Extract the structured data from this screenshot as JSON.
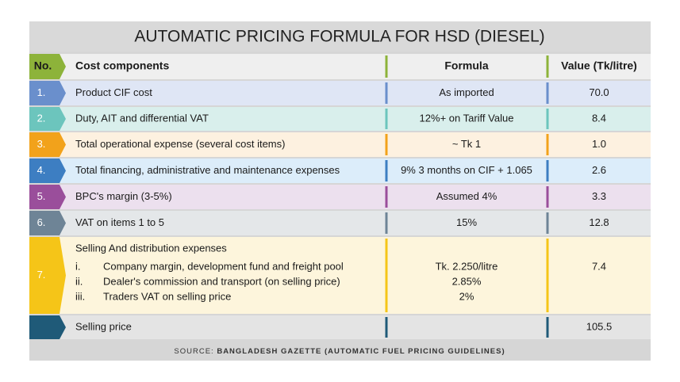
{
  "title": "AUTOMATIC PRICING FORMULA FOR HSD (DIESEL)",
  "header": {
    "no": "No.",
    "component": "Cost components",
    "formula": "Formula",
    "value": "Value (Tk/litre)"
  },
  "rows": [
    {
      "no": "1.",
      "component": "Product CIF cost",
      "formula": "As imported",
      "value": "70.0"
    },
    {
      "no": "2.",
      "component": "Duty, AIT and differential VAT",
      "formula": "12%+  on Tariff Value",
      "value": "8.4"
    },
    {
      "no": "3.",
      "component": "Total operational expense (several cost items)",
      "formula": "~ Tk 1",
      "value": "1.0"
    },
    {
      "no": "4.",
      "component": "Total financing, administrative and maintenance expenses",
      "formula": "9% 3 months on CIF + 1.065",
      "value": "2.6"
    },
    {
      "no": "5.",
      "component": "BPC's margin (3-5%)",
      "formula": "Assumed 4%",
      "value": "3.3"
    },
    {
      "no": "6.",
      "component": "VAT on items 1 to 5",
      "formula": "15%",
      "value": "12.8"
    },
    {
      "no": "7.",
      "component": "Selling And distribution expenses",
      "items": [
        {
          "marker": "i.",
          "text": "Company margin, development fund and freight pool"
        },
        {
          "marker": "ii.",
          "text": "Dealer's commission and transport (on selling price)"
        },
        {
          "marker": "iii.",
          "text": "Traders VAT on selling price"
        }
      ],
      "formulas": [
        "Tk. 2.250/litre",
        "2.85%",
        "2%"
      ],
      "value": "7.4"
    },
    {
      "component": "Selling price",
      "value": "105.5"
    }
  ],
  "source": {
    "label": "SOURCE:",
    "text": "BANGLADESH GAZETTE (AUTOMATIC FUEL PRICING GUIDELINES)"
  }
}
